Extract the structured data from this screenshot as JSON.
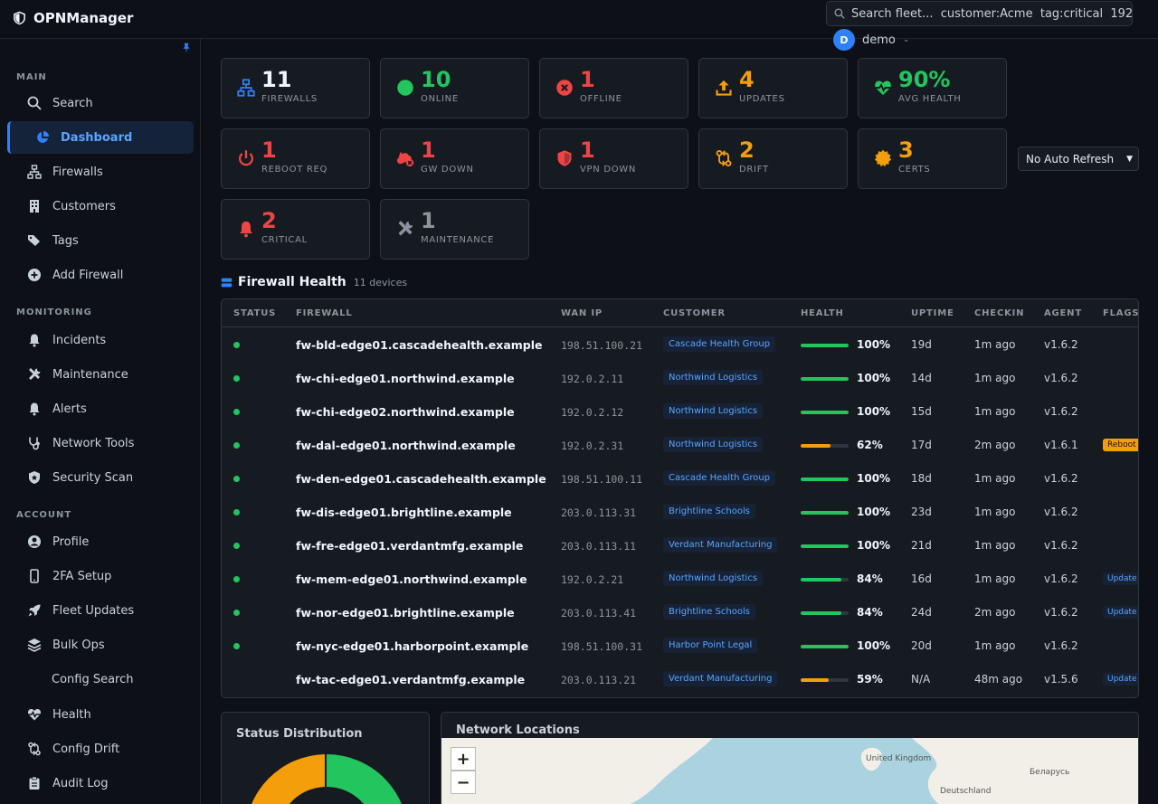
{
  "app": {
    "title": "OPNManager"
  },
  "search": {
    "placeholder": "Search fleet...  customer:Acme  tag:critical  192."
  },
  "user": {
    "initial": "D",
    "name": "demo"
  },
  "sidebar": {
    "sections": {
      "main": "MAIN",
      "monitoring": "MONITORING",
      "account": "ACCOUNT"
    },
    "items": [
      {
        "label": "Search",
        "icon": "search-icon"
      },
      {
        "label": "Dashboard",
        "icon": "pie-chart-icon",
        "active": true
      },
      {
        "label": "Firewalls",
        "icon": "network-icon"
      },
      {
        "label": "Customers",
        "icon": "building-icon"
      },
      {
        "label": "Tags",
        "icon": "tags-icon"
      },
      {
        "label": "Add Firewall",
        "icon": "plus-circle-icon"
      },
      {
        "label": "Incidents",
        "icon": "bell-icon"
      },
      {
        "label": "Maintenance",
        "icon": "tools-icon"
      },
      {
        "label": "Alerts",
        "icon": "bell-icon"
      },
      {
        "label": "Network Tools",
        "icon": "stethoscope-icon"
      },
      {
        "label": "Security Scan",
        "icon": "shield-icon"
      },
      {
        "label": "Profile",
        "icon": "user-circle-icon"
      },
      {
        "label": "2FA Setup",
        "icon": "phone-icon"
      },
      {
        "label": "Fleet Updates",
        "icon": "rocket-icon"
      },
      {
        "label": "Bulk Ops",
        "icon": "layers-icon"
      },
      {
        "label": "Config Search",
        "icon": ""
      },
      {
        "label": "Health",
        "icon": "heart-pulse-icon"
      },
      {
        "label": "Config Drift",
        "icon": "drift-icon"
      },
      {
        "label": "Audit Log",
        "icon": "clipboard-icon"
      }
    ]
  },
  "stats": [
    {
      "value": "11",
      "label": "FIREWALLS",
      "color": "#f0f6fc",
      "icon": "network-icon",
      "icon_color": "#2f81f7"
    },
    {
      "value": "10",
      "label": "ONLINE",
      "color": "#22c55e",
      "icon": "circle-icon",
      "icon_color": "#22c55e"
    },
    {
      "value": "1",
      "label": "OFFLINE",
      "color": "#ef4444",
      "icon": "x-circle-icon",
      "icon_color": "#ef4444"
    },
    {
      "value": "4",
      "label": "UPDATES",
      "color": "#f59e0b",
      "icon": "upload-icon",
      "icon_color": "#f59e0b"
    },
    {
      "value": "90%",
      "label": "AVG HEALTH",
      "color": "#22c55e",
      "icon": "heart-pulse-icon",
      "icon_color": "#22c55e"
    },
    {
      "value": "1",
      "label": "REBOOT REQ",
      "color": "#ef4444",
      "icon": "power-icon",
      "icon_color": "#ef4444"
    },
    {
      "value": "1",
      "label": "GW DOWN",
      "color": "#ef4444",
      "icon": "cloud-x-icon",
      "icon_color": "#ef4444"
    },
    {
      "value": "1",
      "label": "VPN DOWN",
      "color": "#ef4444",
      "icon": "shield-half-icon",
      "icon_color": "#ef4444"
    },
    {
      "value": "2",
      "label": "DRIFT",
      "color": "#f59e0b",
      "icon": "drift-icon",
      "icon_color": "#f59e0b"
    },
    {
      "value": "3",
      "label": "CERTS",
      "color": "#f59e0b",
      "icon": "cert-icon",
      "icon_color": "#f59e0b"
    },
    {
      "value": "2",
      "label": "CRITICAL",
      "color": "#ef4444",
      "icon": "bell-icon",
      "icon_color": "#ef4444"
    },
    {
      "value": "1",
      "label": "MAINTENANCE",
      "color": "#8b949e",
      "icon": "tools-icon",
      "icon_color": "#8b949e"
    }
  ],
  "refresh": {
    "selected": "No Auto Refresh"
  },
  "health": {
    "title": "Firewall Health",
    "count": "11 devices",
    "columns": [
      "STATUS",
      "FIREWALL",
      "WAN IP",
      "CUSTOMER",
      "HEALTH",
      "UPTIME",
      "CHECKIN",
      "AGENT",
      "FLAGS"
    ],
    "rows": [
      {
        "online": true,
        "name": "fw-bld-edge01.cascadehealth.example",
        "ip": "198.51.100.21",
        "customer": "Cascade Health Group",
        "health": 100,
        "health_label": "100%",
        "uptime": "19d",
        "checkin": "1m ago",
        "agent": "v1.6.2",
        "flag": ""
      },
      {
        "online": true,
        "name": "fw-chi-edge01.northwind.example",
        "ip": "192.0.2.11",
        "customer": "Northwind Logistics",
        "health": 100,
        "health_label": "100%",
        "uptime": "14d",
        "checkin": "1m ago",
        "agent": "v1.6.2",
        "flag": ""
      },
      {
        "online": true,
        "name": "fw-chi-edge02.northwind.example",
        "ip": "192.0.2.12",
        "customer": "Northwind Logistics",
        "health": 100,
        "health_label": "100%",
        "uptime": "15d",
        "checkin": "1m ago",
        "agent": "v1.6.2",
        "flag": ""
      },
      {
        "online": true,
        "name": "fw-dal-edge01.northwind.example",
        "ip": "192.0.2.31",
        "customer": "Northwind Logistics",
        "health": 62,
        "health_label": "62%",
        "uptime": "17d",
        "checkin": "2m ago",
        "agent": "v1.6.1",
        "flag": "Reboot"
      },
      {
        "online": true,
        "name": "fw-den-edge01.cascadehealth.example",
        "ip": "198.51.100.11",
        "customer": "Cascade Health Group",
        "health": 100,
        "health_label": "100%",
        "uptime": "18d",
        "checkin": "1m ago",
        "agent": "v1.6.2",
        "flag": ""
      },
      {
        "online": true,
        "name": "fw-dis-edge01.brightline.example",
        "ip": "203.0.113.31",
        "customer": "Brightline Schools",
        "health": 100,
        "health_label": "100%",
        "uptime": "23d",
        "checkin": "1m ago",
        "agent": "v1.6.2",
        "flag": ""
      },
      {
        "online": true,
        "name": "fw-fre-edge01.verdantmfg.example",
        "ip": "203.0.113.11",
        "customer": "Verdant Manufacturing",
        "health": 100,
        "health_label": "100%",
        "uptime": "21d",
        "checkin": "1m ago",
        "agent": "v1.6.2",
        "flag": ""
      },
      {
        "online": true,
        "name": "fw-mem-edge01.northwind.example",
        "ip": "192.0.2.21",
        "customer": "Northwind Logistics",
        "health": 84,
        "health_label": "84%",
        "uptime": "16d",
        "checkin": "1m ago",
        "agent": "v1.6.2",
        "flag": "Update"
      },
      {
        "online": true,
        "name": "fw-nor-edge01.brightline.example",
        "ip": "203.0.113.41",
        "customer": "Brightline Schools",
        "health": 84,
        "health_label": "84%",
        "uptime": "24d",
        "checkin": "2m ago",
        "agent": "v1.6.2",
        "flag": "Update"
      },
      {
        "online": true,
        "name": "fw-nyc-edge01.harborpoint.example",
        "ip": "198.51.100.31",
        "customer": "Harbor Point Legal",
        "health": 100,
        "health_label": "100%",
        "uptime": "20d",
        "checkin": "1m ago",
        "agent": "v1.6.2",
        "flag": ""
      },
      {
        "online": false,
        "name": "fw-tac-edge01.verdantmfg.example",
        "ip": "203.0.113.21",
        "customer": "Verdant Manufacturing",
        "health": 59,
        "health_label": "59%",
        "uptime": "N/A",
        "checkin": "48m ago",
        "agent": "v1.5.6",
        "flag": "Update"
      }
    ]
  },
  "status_distribution": {
    "title": "Status Distribution"
  },
  "network_locations": {
    "title": "Network Locations",
    "zoom_in": "+",
    "zoom_out": "−",
    "labels": [
      "United Kingdom",
      "Беларусь",
      "Deutschland"
    ]
  },
  "colors": {
    "accent": "#2f81f7",
    "good": "#22c55e",
    "warn": "#f59e0b",
    "bad": "#ef4444"
  }
}
